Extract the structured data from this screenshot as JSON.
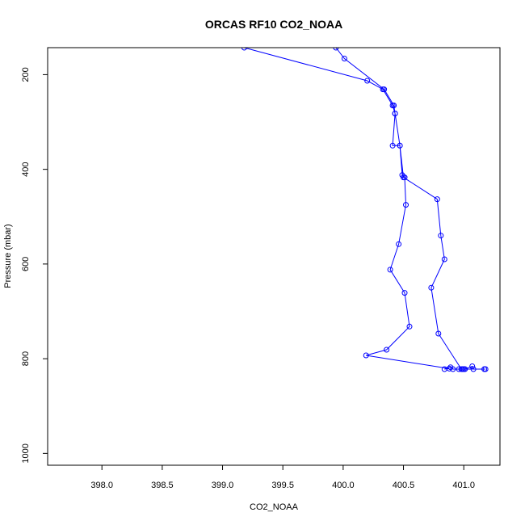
{
  "chart_data": {
    "type": "line",
    "title": "ORCAS RF10 CO2_NOAA",
    "xlabel": "CO2_NOAA",
    "ylabel": "Pressure (mbar)",
    "xlim": [
      397.55,
      401.3
    ],
    "ylim": [
      1025,
      143
    ],
    "y_reversed": true,
    "xticks": [
      398.0,
      398.5,
      399.0,
      399.5,
      400.0,
      400.5,
      401.0
    ],
    "xtick_labels": [
      "398.0",
      "398.5",
      "399.0",
      "399.5",
      "400.0",
      "400.5",
      "401.0"
    ],
    "yticks": [
      200,
      400,
      600,
      800,
      1000
    ],
    "ytick_labels": [
      "200",
      "400",
      "600",
      "800",
      "1000"
    ],
    "grid": false,
    "series_color": "#0000ff",
    "series": [
      {
        "x": [
          399.18,
          400.2,
          400.33,
          400.41,
          400.43,
          400.41,
          400.47,
          400.49,
          400.51,
          400.52,
          400.46,
          400.39,
          400.51,
          400.55,
          400.36,
          400.19,
          400.88,
          400.84,
          400.89,
          400.91,
          400.96,
          400.99,
          401.0,
          401.01,
          401.07,
          401.08,
          401.17,
          401.18,
          400.98,
          400.79,
          400.73,
          400.84,
          400.81,
          400.78,
          400.5,
          400.47,
          400.43,
          400.42,
          400.34,
          400.01,
          399.94
        ],
        "y": [
          143,
          213,
          231,
          265,
          282,
          350,
          350,
          412,
          417,
          475,
          558,
          612,
          661,
          732,
          781,
          793,
          821,
          822,
          818,
          822,
          822,
          822,
          822,
          822,
          816,
          822,
          822,
          822,
          822,
          747,
          650,
          590,
          540,
          463,
          417,
          350,
          282,
          265,
          231,
          166,
          143
        ]
      }
    ]
  }
}
